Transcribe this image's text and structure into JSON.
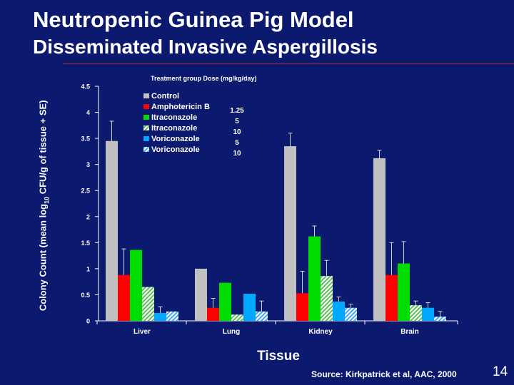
{
  "slide": {
    "title": "Neutropenic Guinea Pig Model",
    "subtitle": "Disseminated Invasive Aspergillosis",
    "ylabel_pre": "Colony Count (mean log",
    "ylabel_sub": "10",
    "ylabel_post": " CFU/g of tissue + SE)",
    "source": "Source: Kirkpatrick et al, AAC, 2000",
    "page_number": "14"
  },
  "chart_data": {
    "type": "bar",
    "title": "",
    "xlabel": "Tissue",
    "ylabel": "Colony Count (mean log10 CFU/g of tissue + SE)",
    "ylim": [
      0,
      4.5
    ],
    "yticks": [
      "0",
      "0.5",
      "1",
      "1.5",
      "2",
      "2.5",
      "3",
      "3.5",
      "4",
      "4.5"
    ],
    "categories": [
      "Liver",
      "Lung",
      "Kidney",
      "Brain"
    ],
    "legend_header": "Treatment group  Dose (mg/kg/day)",
    "legend_position": "top-center",
    "series": [
      {
        "name": "Control",
        "dose": "",
        "color": "#c0c0c0",
        "pattern": "solid",
        "values": [
          3.45,
          1.0,
          3.35,
          3.12
        ],
        "errors": [
          0.38,
          0.0,
          0.25,
          0.15
        ]
      },
      {
        "name": "Amphotericin B",
        "dose": "1.25",
        "color": "#ff0000",
        "pattern": "solid",
        "values": [
          0.88,
          0.25,
          0.53,
          0.88
        ],
        "errors": [
          0.5,
          0.18,
          0.42,
          0.62
        ]
      },
      {
        "name": "Itraconazole",
        "dose": "5",
        "color": "#00dd00",
        "pattern": "solid",
        "values": [
          1.36,
          0.73,
          1.62,
          1.1
        ],
        "errors": [
          0.0,
          0.0,
          0.2,
          0.42
        ]
      },
      {
        "name": "Itraconazole",
        "dose": "10",
        "color": "#b8e0b8",
        "pattern": "hatch",
        "values": [
          0.65,
          0.12,
          0.86,
          0.3
        ],
        "errors": [
          0.0,
          0.0,
          0.3,
          0.08
        ]
      },
      {
        "name": "Voriconazole",
        "dose": "5",
        "color": "#00a8ff",
        "pattern": "solid",
        "values": [
          0.15,
          0.52,
          0.37,
          0.25
        ],
        "errors": [
          0.12,
          0.0,
          0.09,
          0.1
        ]
      },
      {
        "name": "Voriconazole",
        "dose": "10",
        "color": "#a8d8f8",
        "pattern": "hatch",
        "values": [
          0.18,
          0.18,
          0.25,
          0.08
        ],
        "errors": [
          0.0,
          0.2,
          0.07,
          0.1
        ]
      }
    ]
  }
}
